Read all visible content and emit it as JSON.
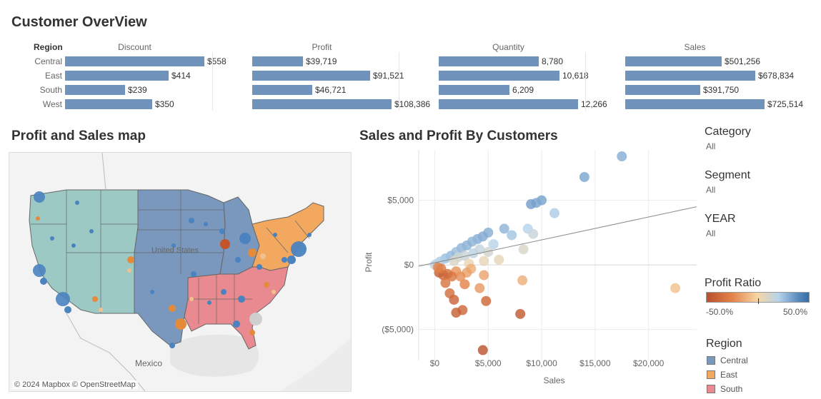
{
  "title": "Customer OverView",
  "overview": {
    "region_header": "Region",
    "regions": [
      "Central",
      "East",
      "South",
      "West"
    ],
    "columns": [
      {
        "header": "Discount",
        "values": [
          558,
          414,
          239,
          350
        ],
        "labels": [
          "$558",
          "$414",
          "$239",
          "$350"
        ]
      },
      {
        "header": "Profit",
        "values": [
          39719,
          91521,
          46721,
          108386
        ],
        "labels": [
          "$39,719",
          "$91,521",
          "$46,721",
          "$108,386"
        ]
      },
      {
        "header": "Quantity",
        "values": [
          8780,
          10618,
          6209,
          12266
        ],
        "labels": [
          "8,780",
          "10,618",
          "6,209",
          "12,266"
        ]
      },
      {
        "header": "Sales",
        "values": [
          501256,
          678834,
          391750,
          725514
        ],
        "labels": [
          "$501,256",
          "$678,834",
          "$391,750",
          "$725,514"
        ]
      }
    ],
    "bar_color": "#6f93bb"
  },
  "map": {
    "title": "Profit and Sales map",
    "labels": {
      "country": "United States",
      "mexico": "Mexico"
    },
    "attribution": "© 2024 Mapbox © OpenStreetMap",
    "region_colors": {
      "West": "#9dc9c5",
      "Central": "#7a98bd",
      "East": "#f2a85e",
      "South": "#e88a8f"
    }
  },
  "scatter": {
    "title": "Sales and Profit By Customers",
    "xlabel": "Sales",
    "ylabel": "Profit",
    "x_ticks": [
      "$0",
      "$5,000",
      "$10,000",
      "$15,000",
      "$20,000"
    ],
    "y_ticks": [
      "$5,000",
      "$0",
      "($5,000)"
    ]
  },
  "chart_data": {
    "type": "scatter",
    "title": "Sales and Profit By Customers",
    "xlabel": "Sales",
    "ylabel": "Profit",
    "xlim": [
      -1500,
      24500
    ],
    "ylim": [
      -7400,
      8900
    ],
    "grid": true,
    "trend_line": {
      "x0": -1500,
      "y0": -100,
      "x1": 24500,
      "y1": 4500
    },
    "color_scale": {
      "min": -0.5,
      "max": 0.5,
      "label": "Profit Ratio"
    },
    "points": [
      {
        "x": 17500,
        "y": 8400,
        "r": 0.3
      },
      {
        "x": 14000,
        "y": 6800,
        "r": 0.32
      },
      {
        "x": 10000,
        "y": 5000,
        "r": 0.33
      },
      {
        "x": 9500,
        "y": 4800,
        "r": 0.32
      },
      {
        "x": 9000,
        "y": 4700,
        "r": 0.34
      },
      {
        "x": 11200,
        "y": 4000,
        "r": 0.22
      },
      {
        "x": 8700,
        "y": 2800,
        "r": 0.2
      },
      {
        "x": 9200,
        "y": 2400,
        "r": 0.15
      },
      {
        "x": 6500,
        "y": 2800,
        "r": 0.28
      },
      {
        "x": 5000,
        "y": 2500,
        "r": 0.3
      },
      {
        "x": 4500,
        "y": 2200,
        "r": 0.31
      },
      {
        "x": 4000,
        "y": 2000,
        "r": 0.3
      },
      {
        "x": 3500,
        "y": 1800,
        "r": 0.28
      },
      {
        "x": 3000,
        "y": 1500,
        "r": 0.29
      },
      {
        "x": 2500,
        "y": 1300,
        "r": 0.28
      },
      {
        "x": 2000,
        "y": 1000,
        "r": 0.26
      },
      {
        "x": 1500,
        "y": 700,
        "r": 0.27
      },
      {
        "x": 1000,
        "y": 500,
        "r": 0.25
      },
      {
        "x": 500,
        "y": 250,
        "r": 0.22
      },
      {
        "x": 200,
        "y": 80,
        "r": 0.2
      },
      {
        "x": 0,
        "y": 0,
        "r": 0.18
      },
      {
        "x": 7200,
        "y": 2300,
        "r": 0.24
      },
      {
        "x": 5500,
        "y": 1600,
        "r": 0.2
      },
      {
        "x": 5000,
        "y": 1000,
        "r": 0.12
      },
      {
        "x": 4200,
        "y": 1200,
        "r": 0.16
      },
      {
        "x": 3600,
        "y": 900,
        "r": 0.18
      },
      {
        "x": 2800,
        "y": 700,
        "r": 0.15
      },
      {
        "x": 2200,
        "y": 600,
        "r": 0.14
      },
      {
        "x": 1800,
        "y": 300,
        "r": 0.1
      },
      {
        "x": 8300,
        "y": 1200,
        "r": 0.1
      },
      {
        "x": 6000,
        "y": 400,
        "r": 0.06
      },
      {
        "x": 4600,
        "y": 300,
        "r": 0.05
      },
      {
        "x": 3200,
        "y": 100,
        "r": 0.04
      },
      {
        "x": 22500,
        "y": -1800,
        "r": -0.06
      },
      {
        "x": 8200,
        "y": -1200,
        "r": -0.12
      },
      {
        "x": 4600,
        "y": -800,
        "r": -0.15
      },
      {
        "x": 4200,
        "y": -1800,
        "r": -0.18
      },
      {
        "x": 3400,
        "y": -300,
        "r": -0.12
      },
      {
        "x": 3000,
        "y": -600,
        "r": -0.16
      },
      {
        "x": 2800,
        "y": -1500,
        "r": -0.25
      },
      {
        "x": 2400,
        "y": -900,
        "r": -0.22
      },
      {
        "x": 2000,
        "y": -500,
        "r": -0.2
      },
      {
        "x": 1600,
        "y": -900,
        "r": -0.3
      },
      {
        "x": 1200,
        "y": -700,
        "r": -0.34
      },
      {
        "x": 800,
        "y": -800,
        "r": -0.38
      },
      {
        "x": 400,
        "y": -600,
        "r": -0.42
      },
      {
        "x": 1000,
        "y": -1400,
        "r": -0.32
      },
      {
        "x": 1400,
        "y": -2200,
        "r": -0.35
      },
      {
        "x": 1800,
        "y": -2700,
        "r": -0.4
      },
      {
        "x": 2600,
        "y": -3500,
        "r": -0.38
      },
      {
        "x": 2000,
        "y": -3700,
        "r": -0.42
      },
      {
        "x": 4800,
        "y": -2800,
        "r": -0.38
      },
      {
        "x": 8000,
        "y": -3800,
        "r": -0.44
      },
      {
        "x": 4500,
        "y": -6600,
        "r": -0.48
      },
      {
        "x": 600,
        "y": -300,
        "r": -0.3
      },
      {
        "x": 300,
        "y": -200,
        "r": -0.26
      }
    ]
  },
  "filters": [
    {
      "title": "Category",
      "value": "All"
    },
    {
      "title": "Segment",
      "value": "All"
    },
    {
      "title": "YEAR",
      "value": "All"
    }
  ],
  "profit_ratio_legend": {
    "title": "Profit Ratio",
    "min_label": "-50.0%",
    "max_label": "50.0%"
  },
  "region_legend": {
    "title": "Region",
    "items": [
      {
        "label": "Central",
        "color": "#7a98bd"
      },
      {
        "label": "East",
        "color": "#f2a85e"
      },
      {
        "label": "South",
        "color": "#e88a8f"
      }
    ]
  }
}
